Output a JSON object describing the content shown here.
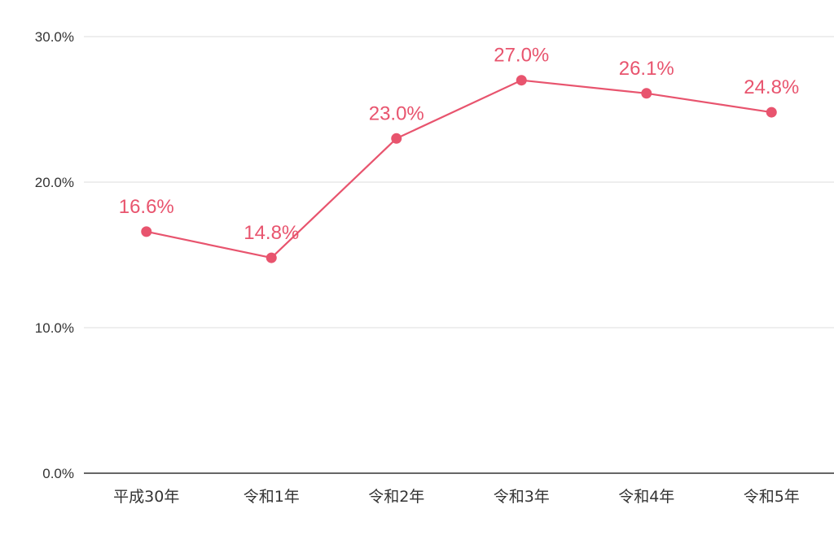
{
  "chart_data": {
    "type": "line",
    "categories": [
      "平成30年",
      "令和1年",
      "令和2年",
      "令和3年",
      "令和4年",
      "令和5年"
    ],
    "values": [
      16.6,
      14.8,
      23.0,
      27.0,
      26.1,
      24.8
    ],
    "data_labels": [
      "16.6%",
      "14.8%",
      "23.0%",
      "27.0%",
      "26.1%",
      "24.8%"
    ],
    "title": "",
    "xlabel": "",
    "ylabel": "",
    "ylim": [
      0,
      30
    ],
    "yticks": [
      0,
      10,
      20,
      30
    ],
    "ytick_labels": [
      "0.0%",
      "10.0%",
      "20.0%",
      "30.0%"
    ],
    "grid": true,
    "colors": {
      "series": "#e8546e",
      "grid": "#dcdcdc",
      "axis": "#333333"
    }
  }
}
